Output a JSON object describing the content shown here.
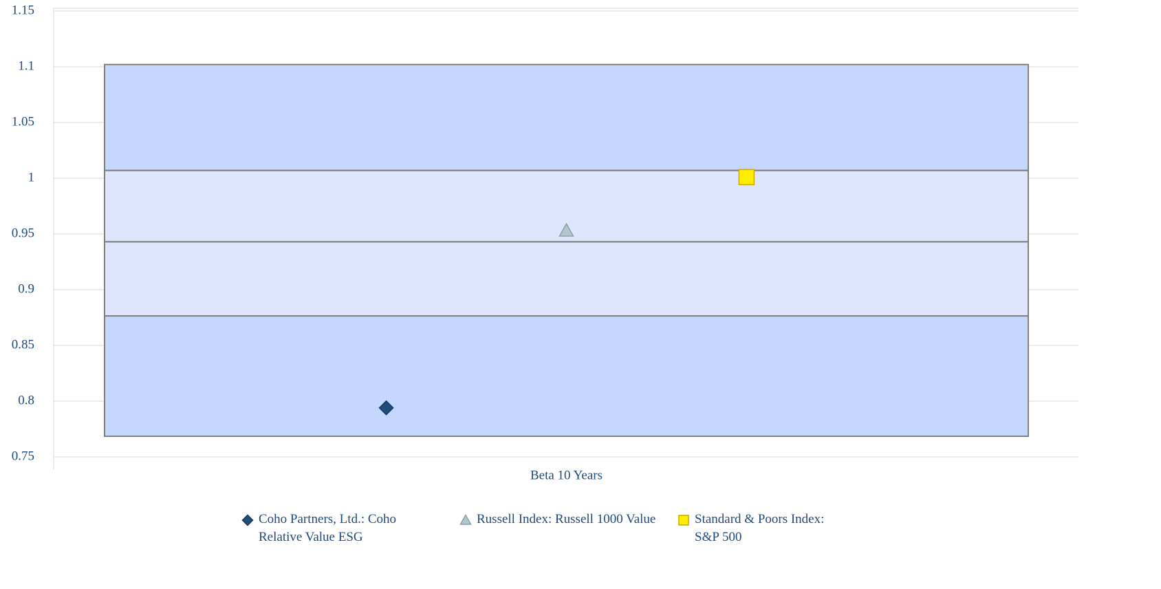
{
  "chart_data": {
    "type": "floating-box",
    "categories": [
      "Beta 10 Years"
    ],
    "box": {
      "values": [
        0.7685,
        0.8765,
        0.943,
        1.007,
        1.102
      ],
      "outer_color": "#c5d7fd",
      "inner_color": "#dde6fd",
      "edge_color": "#7f7f7f"
    },
    "series": [
      {
        "name": "Coho Partners, Ltd.: Coho Relative Value ESG",
        "color": "#1f4e79",
        "marker": "diamond",
        "values": [
          0.794
        ]
      },
      {
        "name": "Russell Index: Russell 1000 Value",
        "color": "#b4c7cf",
        "marker": "triangle",
        "values": [
          0.953
        ]
      },
      {
        "name": "Standard & Poors Index: S&P 500",
        "color": "#ffee00",
        "marker": "square",
        "values": [
          1.001
        ]
      }
    ],
    "ylim": [
      0.75,
      1.15
    ],
    "yticks": [
      0.75,
      0.8,
      0.85,
      0.9,
      0.95,
      1,
      1.05,
      1.1,
      1.15
    ],
    "grid": true
  }
}
